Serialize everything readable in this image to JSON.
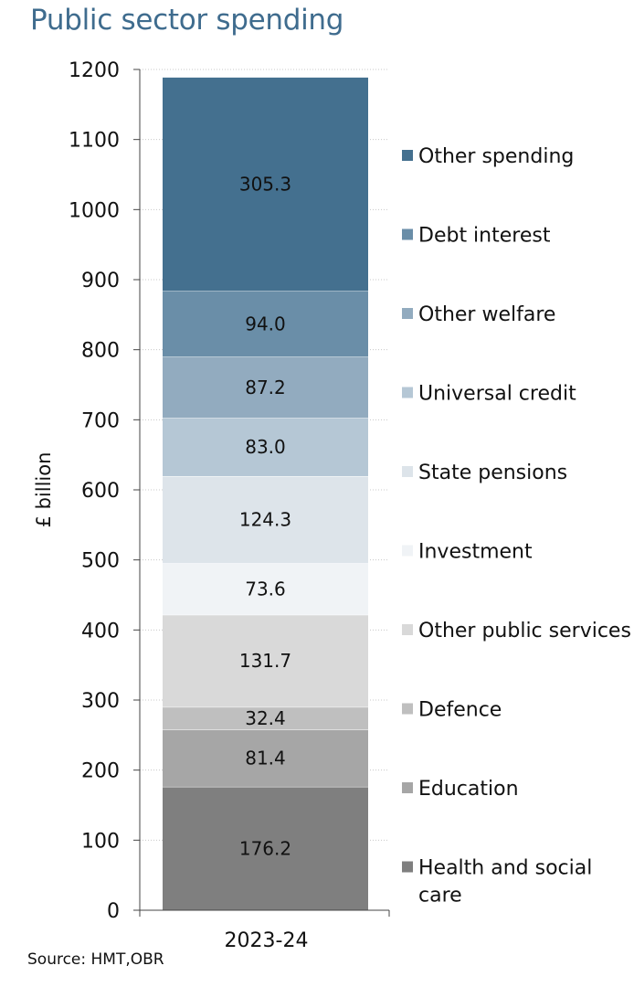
{
  "title": "Public sector spending",
  "source": "Source: HMT,OBR",
  "chart_data": {
    "type": "bar",
    "stacked": true,
    "categories": [
      "2023-24"
    ],
    "ylabel": "£ billion",
    "ylim": [
      0,
      1200
    ],
    "yticks": [
      0,
      100,
      200,
      300,
      400,
      500,
      600,
      700,
      800,
      900,
      1000,
      1100,
      1200
    ],
    "gridlines": true,
    "legend_position": "right",
    "series": [
      {
        "name": "Health and social care",
        "values": [
          176.2
        ],
        "label": "176.2",
        "color": "#7f7f7f"
      },
      {
        "name": "Education",
        "values": [
          81.4
        ],
        "label": "81.4",
        "color": "#a6a6a6"
      },
      {
        "name": "Defence",
        "values": [
          32.4
        ],
        "label": "32.4",
        "color": "#bfbfbf"
      },
      {
        "name": "Other public services",
        "values": [
          131.7
        ],
        "label": "131.7",
        "color": "#d9d9d9"
      },
      {
        "name": "Investment",
        "values": [
          73.6
        ],
        "label": "73.6",
        "color": "#f0f3f6"
      },
      {
        "name": "State pensions",
        "values": [
          124.3
        ],
        "label": "124.3",
        "color": "#dde4ea"
      },
      {
        "name": "Universal credit",
        "values": [
          83.0
        ],
        "label": "83.0",
        "color": "#b5c7d5"
      },
      {
        "name": "Other welfare",
        "values": [
          87.2
        ],
        "label": "87.2",
        "color": "#92abbf"
      },
      {
        "name": "Debt interest",
        "values": [
          94.0
        ],
        "label": "94.0",
        "color": "#6a8ea8"
      },
      {
        "name": "Other spending",
        "values": [
          305.3
        ],
        "label": "305.3",
        "color": "#44708f"
      }
    ],
    "legend": [
      {
        "lines": [
          "Other spending"
        ],
        "color": "#44708f"
      },
      {
        "lines": [
          "Debt interest"
        ],
        "color": "#6a8ea8"
      },
      {
        "lines": [
          "Other welfare"
        ],
        "color": "#92abbf"
      },
      {
        "lines": [
          "Universal credit"
        ],
        "color": "#b5c7d5"
      },
      {
        "lines": [
          "State pensions"
        ],
        "color": "#dde4ea"
      },
      {
        "lines": [
          "Investment"
        ],
        "color": "#f0f3f6"
      },
      {
        "lines": [
          "Other public services"
        ],
        "color": "#d9d9d9"
      },
      {
        "lines": [
          "Defence"
        ],
        "color": "#bfbfbf"
      },
      {
        "lines": [
          "Education"
        ],
        "color": "#a6a6a6"
      },
      {
        "lines": [
          "Health and social",
          "care"
        ],
        "color": "#7f7f7f"
      }
    ]
  }
}
